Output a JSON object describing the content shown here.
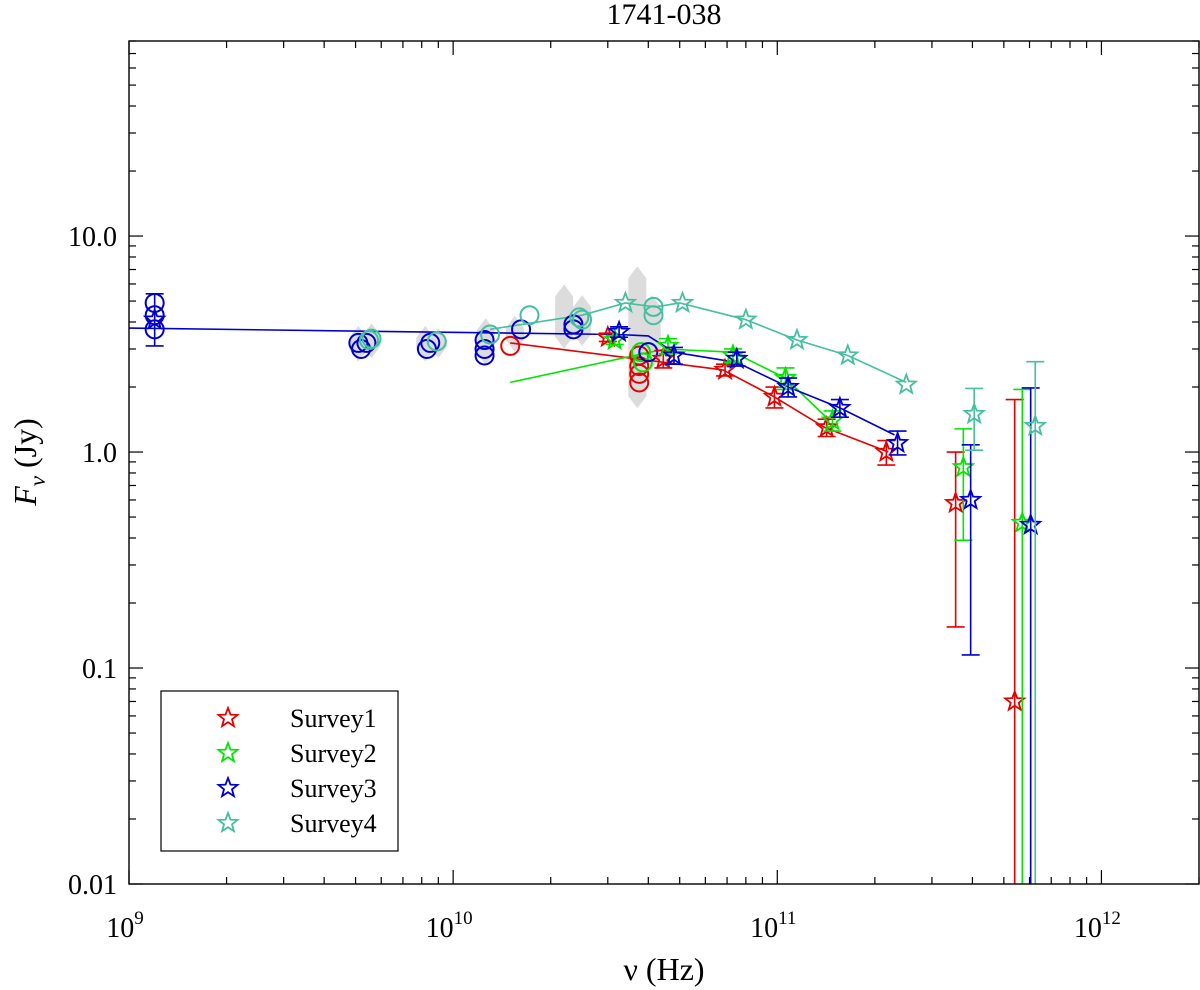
{
  "chart_data": {
    "type": "scatter",
    "title": "1741-038",
    "xlabel": "ν (Hz)",
    "ylabel_main": "F",
    "ylabel_sub": "ν",
    "ylabel_unit": "(Jy)",
    "xscale": "log",
    "yscale": "log",
    "xlim": [
      1000000000.0,
      2000000000000.0
    ],
    "ylim": [
      0.01,
      80
    ],
    "x_ticks": [
      {
        "value": 1000000000.0,
        "base": "10",
        "exp": "9"
      },
      {
        "value": 10000000000.0,
        "base": "10",
        "exp": "10"
      },
      {
        "value": 100000000000.0,
        "base": "10",
        "exp": "11"
      },
      {
        "value": 1000000000000.0,
        "base": "10",
        "exp": "12"
      }
    ],
    "y_ticks": [
      {
        "value": 0.01,
        "label": "0.01"
      },
      {
        "value": 0.1,
        "label": "0.1"
      },
      {
        "value": 1,
        "label": "1.0"
      },
      {
        "value": 10,
        "label": "10.0"
      }
    ],
    "legend": {
      "position": "bottom-left",
      "entries": [
        {
          "name": "Survey1",
          "color": "#e60000"
        },
        {
          "name": "Survey2",
          "color": "#00e600"
        },
        {
          "name": "Survey3",
          "color": "#0000cc"
        },
        {
          "name": "Survey4",
          "color": "#45bfa0"
        }
      ]
    },
    "gray_range_markers": [
      {
        "x": 5100000000.0,
        "ylo": 2.8,
        "yhi": 3.6
      },
      {
        "x": 5600000000.0,
        "ylo": 2.9,
        "yhi": 3.7
      },
      {
        "x": 8200000000.0,
        "ylo": 2.8,
        "yhi": 3.6
      },
      {
        "x": 9000000000.0,
        "ylo": 2.9,
        "yhi": 3.5
      },
      {
        "x": 12600000000.0,
        "ylo": 2.7,
        "yhi": 3.9
      },
      {
        "x": 15500000000.0,
        "ylo": 3.1,
        "yhi": 4.0
      },
      {
        "x": 22000000000.0,
        "ylo": 3.2,
        "yhi": 5.6
      },
      {
        "x": 25000000000.0,
        "ylo": 3.3,
        "yhi": 5.0
      },
      {
        "x": 37000000000.0,
        "ylo": 1.7,
        "yhi": 6.8
      },
      {
        "x": 41000000000.0,
        "ylo": 2.6,
        "yhi": 5.0
      }
    ],
    "circles": [
      {
        "x": 1200000000.0,
        "y": 4.9,
        "color": "#0000cc"
      },
      {
        "x": 1200000000.0,
        "y": 4.3,
        "color": "#0000cc"
      },
      {
        "x": 1200000000.0,
        "y": 3.7,
        "color": "#0000cc"
      },
      {
        "x": 5100000000.0,
        "y": 3.2,
        "color": "#0000cc"
      },
      {
        "x": 5200000000.0,
        "y": 3.0,
        "color": "#0000cc"
      },
      {
        "x": 5400000000.0,
        "y": 3.2,
        "color": "#0000cc"
      },
      {
        "x": 5500000000.0,
        "y": 3.3,
        "color": "#45bfa0"
      },
      {
        "x": 5600000000.0,
        "y": 3.35,
        "color": "#45bfa0"
      },
      {
        "x": 8300000000.0,
        "y": 3.0,
        "color": "#0000cc"
      },
      {
        "x": 8500000000.0,
        "y": 3.2,
        "color": "#0000cc"
      },
      {
        "x": 8900000000.0,
        "y": 3.25,
        "color": "#45bfa0"
      },
      {
        "x": 12500000000.0,
        "y": 2.8,
        "color": "#0000cc"
      },
      {
        "x": 12500000000.0,
        "y": 3.0,
        "color": "#0000cc"
      },
      {
        "x": 12500000000.0,
        "y": 3.3,
        "color": "#0000cc"
      },
      {
        "x": 13000000000.0,
        "y": 3.5,
        "color": "#45bfa0"
      },
      {
        "x": 15000000000.0,
        "y": 3.1,
        "color": "#e60000"
      },
      {
        "x": 16200000000.0,
        "y": 3.7,
        "color": "#0000cc"
      },
      {
        "x": 17200000000.0,
        "y": 4.3,
        "color": "#45bfa0"
      },
      {
        "x": 23500000000.0,
        "y": 3.7,
        "color": "#0000cc"
      },
      {
        "x": 23500000000.0,
        "y": 3.9,
        "color": "#0000cc"
      },
      {
        "x": 24500000000.0,
        "y": 4.2,
        "color": "#45bfa0"
      },
      {
        "x": 25000000000.0,
        "y": 4.1,
        "color": "#45bfa0"
      },
      {
        "x": 37500000000.0,
        "y": 2.1,
        "color": "#e60000"
      },
      {
        "x": 37500000000.0,
        "y": 2.3,
        "color": "#e60000"
      },
      {
        "x": 37500000000.0,
        "y": 2.5,
        "color": "#e60000"
      },
      {
        "x": 37500000000.0,
        "y": 2.8,
        "color": "#e60000"
      },
      {
        "x": 38000000000.0,
        "y": 2.9,
        "color": "#00e600"
      },
      {
        "x": 38500000000.0,
        "y": 2.6,
        "color": "#00e600"
      },
      {
        "x": 40000000000.0,
        "y": 2.9,
        "color": "#0000cc"
      },
      {
        "x": 41500000000.0,
        "y": 4.3,
        "color": "#45bfa0"
      },
      {
        "x": 41500000000.0,
        "y": 4.7,
        "color": "#45bfa0"
      }
    ],
    "series": [
      {
        "name": "Survey1",
        "color": "#e60000",
        "line": [
          [
            15000000000.0,
            3.2
          ],
          [
            45000000000.0,
            2.6
          ],
          [
            68000000000.0,
            2.4
          ],
          [
            98000000000.0,
            1.8
          ],
          [
            140000000000.0,
            1.3
          ],
          [
            220000000000.0,
            1.0
          ]
        ],
        "stars": [
          [
            30000000000.0,
            3.4,
            3.25,
            3.55
          ],
          [
            44500000000.0,
            2.7,
            2.45,
            2.95
          ],
          [
            69000000000.0,
            2.4,
            2.25,
            2.55
          ],
          [
            98000000000.0,
            1.8,
            1.6,
            2.0
          ],
          [
            142000000000.0,
            1.3,
            1.18,
            1.42
          ],
          [
            217000000000.0,
            1.0,
            0.87,
            1.13
          ],
          [
            355000000000.0,
            0.58,
            0.155,
            1.0
          ],
          [
            540000000000.0,
            0.07,
            0.01,
            1.75
          ]
        ]
      },
      {
        "name": "Survey2",
        "color": "#00e600",
        "line": [
          [
            15000000000.0,
            2.1
          ],
          [
            45000000000.0,
            3.0
          ],
          [
            73000000000.0,
            2.9
          ],
          [
            106000000000.0,
            2.2
          ],
          [
            145000000000.0,
            1.4
          ]
        ],
        "stars": [
          [
            31500000000.0,
            3.3,
            3.15,
            3.45
          ],
          [
            46000000000.0,
            3.1,
            2.85,
            3.35
          ],
          [
            73000000000.0,
            2.8,
            2.6,
            3.0
          ],
          [
            106000000000.0,
            2.2,
            1.95,
            2.45
          ],
          [
            148000000000.0,
            1.4,
            1.25,
            1.55
          ],
          [
            375000000000.0,
            0.85,
            0.39,
            1.28
          ],
          [
            570000000000.0,
            0.47,
            0.01,
            1.95
          ]
        ]
      },
      {
        "name": "Survey3",
        "color": "#0000cc",
        "line": [
          [
            1000000000.0,
            3.75
          ],
          [
            32000000000.0,
            3.5
          ],
          [
            40000000000.0,
            3.45
          ],
          [
            48000000000.0,
            2.9
          ],
          [
            75000000000.0,
            2.6
          ],
          [
            108000000000.0,
            2.0
          ],
          [
            156000000000.0,
            1.6
          ],
          [
            230000000000.0,
            1.2
          ]
        ],
        "stars": [
          [
            1200000000.0,
            4.1,
            3.1,
            5.4
          ],
          [
            32500000000.0,
            3.6,
            3.4,
            3.8
          ],
          [
            48000000000.0,
            2.8,
            2.55,
            3.05
          ],
          [
            75000000000.0,
            2.7,
            2.5,
            2.9
          ],
          [
            108000000000.0,
            2.0,
            1.8,
            2.2
          ],
          [
            156000000000.0,
            1.6,
            1.45,
            1.75
          ],
          [
            235000000000.0,
            1.1,
            0.97,
            1.25
          ],
          [
            395000000000.0,
            0.6,
            0.115,
            1.08
          ],
          [
            605000000000.0,
            0.46,
            0.01,
            1.98
          ]
        ]
      },
      {
        "name": "Survey4",
        "color": "#45bfa0",
        "line": [
          [
            13000000000.0,
            3.7
          ],
          [
            25000000000.0,
            4.3
          ],
          [
            34000000000.0,
            4.9
          ],
          [
            42000000000.0,
            4.7
          ],
          [
            50000000000.0,
            4.9
          ],
          [
            80000000000.0,
            4.1
          ],
          [
            115000000000.0,
            3.3
          ],
          [
            165000000000.0,
            2.8
          ],
          [
            250000000000.0,
            2.1
          ]
        ],
        "stars": [
          [
            34000000000.0,
            4.9
          ],
          [
            51000000000.0,
            4.9
          ],
          [
            80000000000.0,
            4.1
          ],
          [
            115000000000.0,
            3.3
          ],
          [
            165000000000.0,
            2.8
          ],
          [
            250000000000.0,
            2.05
          ],
          [
            405000000000.0,
            1.5,
            1.02,
            1.97
          ],
          [
            625000000000.0,
            1.32,
            0.01,
            2.62
          ]
        ]
      }
    ]
  }
}
